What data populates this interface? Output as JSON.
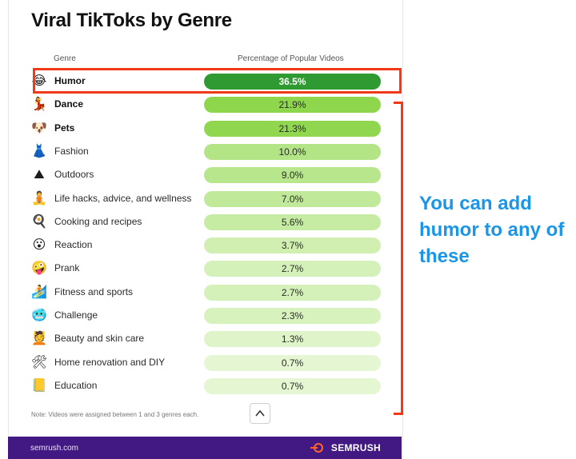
{
  "chart_data": {
    "type": "table",
    "title": "Viral TikToks by Genre",
    "columns": [
      "Genre",
      "Percentage of Popular Videos"
    ],
    "rows": [
      {
        "genre": "Humor",
        "value": "36.5%",
        "pct": 36.5,
        "bold": true,
        "icon": "laughing-face-icon",
        "glyph": "😂"
      },
      {
        "genre": "Dance",
        "value": "21.9%",
        "pct": 21.9,
        "bold": true,
        "icon": "dancer-icon",
        "glyph": "💃"
      },
      {
        "genre": "Pets",
        "value": "21.3%",
        "pct": 21.3,
        "bold": true,
        "icon": "dog-face-icon",
        "glyph": "🐶"
      },
      {
        "genre": "Fashion",
        "value": "10.0%",
        "pct": 10.0,
        "bold": false,
        "icon": "dress-icon",
        "glyph": "👗"
      },
      {
        "genre": "Outdoors",
        "value": "9.0%",
        "pct": 9.0,
        "bold": false,
        "icon": "mountain-icon",
        "glyph": "⛰"
      },
      {
        "genre": "Life hacks, advice, and wellness",
        "value": "7.0%",
        "pct": 7.0,
        "bold": false,
        "icon": "meditation-icon",
        "glyph": "🧘"
      },
      {
        "genre": "Cooking and recipes",
        "value": "5.6%",
        "pct": 5.6,
        "bold": false,
        "icon": "cooking-pan-icon",
        "glyph": "🍳"
      },
      {
        "genre": "Reaction",
        "value": "3.7%",
        "pct": 3.7,
        "bold": false,
        "icon": "surprised-face-icon",
        "glyph": "😮"
      },
      {
        "genre": "Prank",
        "value": "2.7%",
        "pct": 2.7,
        "bold": false,
        "icon": "zany-face-icon",
        "glyph": "🤪"
      },
      {
        "genre": "Fitness and sports",
        "value": "2.7%",
        "pct": 2.7,
        "bold": false,
        "icon": "surfer-icon",
        "glyph": "🏄"
      },
      {
        "genre": "Challenge",
        "value": "2.3%",
        "pct": 2.3,
        "bold": false,
        "icon": "cold-face-icon",
        "glyph": "🥶"
      },
      {
        "genre": "Beauty and skin care",
        "value": "1.3%",
        "pct": 1.3,
        "bold": false,
        "icon": "face-massage-icon",
        "glyph": "💆"
      },
      {
        "genre": "Home renovation and DIY",
        "value": "0.7%",
        "pct": 0.7,
        "bold": false,
        "icon": "hammer-wrench-icon",
        "glyph": "🛠"
      },
      {
        "genre": "Education",
        "value": "0.7%",
        "pct": 0.7,
        "bold": false,
        "icon": "notebook-icon",
        "glyph": "📒"
      }
    ],
    "color_scale": {
      "low": "#f2fbe6",
      "high": "#2e9a31"
    }
  },
  "annotation": {
    "callout_text": "You can add humor to any of these",
    "highlight_color": "#f03a17",
    "callout_color": "#1a95e8"
  },
  "note": "Note: Videos were assigned between 1 and 3 genres each.",
  "footer": {
    "site": "semrush.com",
    "brand": "SEMRUSH",
    "background": "#421983",
    "logo_color": "#ff642d"
  },
  "collapse_icon": "chevron-up-icon"
}
